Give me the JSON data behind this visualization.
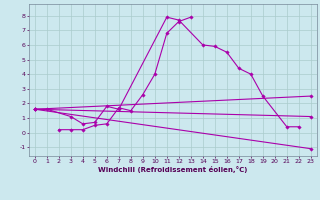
{
  "background_color": "#cce8ee",
  "grid_color": "#aacccc",
  "line_color": "#aa00aa",
  "xlabel": "Windchill (Refroidissement éolien,°C)",
  "xlim": [
    -0.5,
    23.5
  ],
  "ylim": [
    -1.6,
    8.8
  ],
  "xticks": [
    0,
    1,
    2,
    3,
    4,
    5,
    6,
    7,
    8,
    9,
    10,
    11,
    12,
    13,
    14,
    15,
    16,
    17,
    18,
    19,
    20,
    21,
    22,
    23
  ],
  "yticks": [
    -1,
    0,
    1,
    2,
    3,
    4,
    5,
    6,
    7,
    8
  ],
  "series": [
    {
      "x": [
        0,
        1,
        3,
        4,
        5,
        6,
        7,
        11,
        12,
        14,
        15,
        16,
        17,
        18,
        19,
        21,
        22
      ],
      "y": [
        1.6,
        1.6,
        1.1,
        0.6,
        0.7,
        1.8,
        1.6,
        7.9,
        7.7,
        6.0,
        5.9,
        5.5,
        4.4,
        4.0,
        2.5,
        0.4,
        0.4
      ]
    },
    {
      "x": [
        2,
        3,
        4,
        5,
        6,
        7,
        8,
        9,
        10,
        11,
        12,
        13
      ],
      "y": [
        0.2,
        0.2,
        0.2,
        0.5,
        0.6,
        1.7,
        1.5,
        2.6,
        4.0,
        6.8,
        7.6,
        7.9
      ]
    },
    {
      "x": [
        0,
        23
      ],
      "y": [
        1.6,
        -1.1
      ]
    },
    {
      "x": [
        0,
        23
      ],
      "y": [
        1.6,
        1.1
      ]
    },
    {
      "x": [
        0,
        23
      ],
      "y": [
        1.6,
        2.5
      ]
    }
  ],
  "tick_color": "#550055",
  "tick_fontsize": 4.5,
  "xlabel_fontsize": 5.0,
  "linewidth": 0.8,
  "markersize": 1.8
}
